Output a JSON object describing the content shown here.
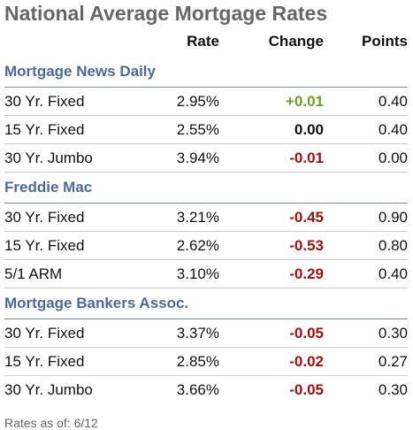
{
  "title": "National Average Mortgage Rates",
  "headers": {
    "rate": "Rate",
    "change": "Change",
    "points": "Points"
  },
  "colors": {
    "title": "#666666",
    "section": "#4a6a9e",
    "positive": "#6aa121",
    "neutral": "#111111",
    "negative": "#a01010"
  },
  "sections": [
    {
      "name": "Mortgage News Daily",
      "rows": [
        {
          "product": "30 Yr. Fixed",
          "rate": "2.95%",
          "change": "+0.01",
          "direction": "positive",
          "points": "0.40"
        },
        {
          "product": "15 Yr. Fixed",
          "rate": "2.55%",
          "change": "0.00",
          "direction": "neutral",
          "points": "0.40"
        },
        {
          "product": "30 Yr. Jumbo",
          "rate": "3.94%",
          "change": "-0.01",
          "direction": "negative",
          "points": "0.00"
        }
      ]
    },
    {
      "name": "Freddie Mac",
      "rows": [
        {
          "product": "30 Yr. Fixed",
          "rate": "3.21%",
          "change": "-0.45",
          "direction": "negative",
          "points": "0.90"
        },
        {
          "product": "15 Yr. Fixed",
          "rate": "2.62%",
          "change": "-0.53",
          "direction": "negative",
          "points": "0.80"
        },
        {
          "product": "5/1 ARM",
          "rate": "3.10%",
          "change": "-0.29",
          "direction": "negative",
          "points": "0.40"
        }
      ]
    },
    {
      "name": "Mortgage Bankers Assoc.",
      "rows": [
        {
          "product": "30 Yr. Fixed",
          "rate": "3.37%",
          "change": "-0.05",
          "direction": "negative",
          "points": "0.30"
        },
        {
          "product": "15 Yr. Fixed",
          "rate": "2.85%",
          "change": "-0.02",
          "direction": "negative",
          "points": "0.27"
        },
        {
          "product": "30 Yr. Jumbo",
          "rate": "3.66%",
          "change": "-0.05",
          "direction": "negative",
          "points": "0.30"
        }
      ]
    }
  ],
  "footer": "Rates as of: 6/12"
}
